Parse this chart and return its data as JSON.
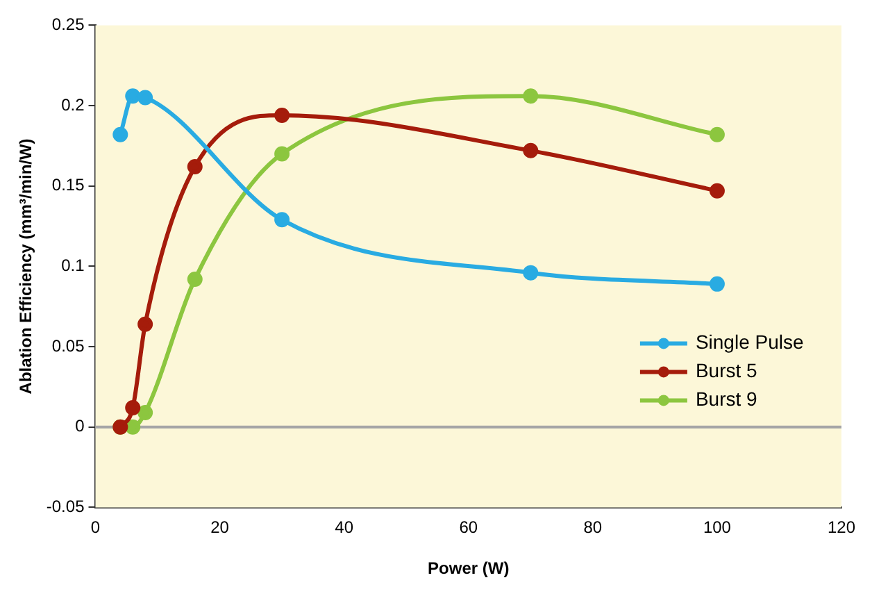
{
  "chart_data": {
    "type": "line",
    "xlabel": "Power (W)",
    "ylabel": "Ablation Efficiency (mm³/min/W)",
    "xlim": [
      0,
      120
    ],
    "xticks": [
      0,
      20,
      40,
      60,
      80,
      100,
      120
    ],
    "ylim": [
      -0.05,
      0.25
    ],
    "yticks": [
      -0.05,
      0,
      0.05,
      0.1,
      0.15,
      0.2,
      0.25
    ],
    "series": [
      {
        "name": "Single Pulse",
        "color": "#29abe2",
        "x": [
          4,
          6,
          8,
          30,
          70,
          100
        ],
        "values": [
          0.182,
          0.206,
          0.205,
          0.129,
          0.096,
          0.089
        ]
      },
      {
        "name": "Burst 5",
        "color": "#a51c0b",
        "x": [
          4,
          6,
          8,
          16,
          30,
          70,
          100
        ],
        "values": [
          0,
          0.012,
          0.064,
          0.162,
          0.194,
          0.172,
          0.147
        ]
      },
      {
        "name": "Burst 9",
        "color": "#8cc63f",
        "x": [
          4,
          6,
          8,
          16,
          30,
          70,
          100
        ],
        "values": [
          0,
          0,
          0.009,
          0.092,
          0.17,
          0.206,
          0.182
        ]
      }
    ],
    "ref_lines": [
      {
        "axis": "y",
        "value": 0,
        "color": "#a6a6a6"
      }
    ],
    "marker": "circle",
    "line_style": "solid",
    "grid": false,
    "legend": "right"
  }
}
